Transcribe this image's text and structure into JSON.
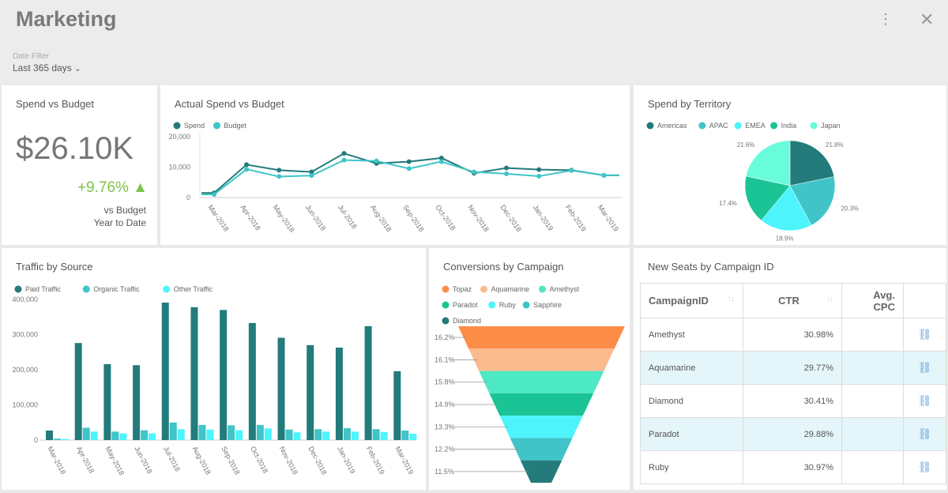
{
  "header": {
    "title": "Marketing",
    "filter_label": "Date Filter",
    "filter_value": "Last 365 days",
    "filter_chevron": "⌄",
    "more_icon": "⋮",
    "close_icon": "✕"
  },
  "kpi": {
    "title": "Spend vs Budget",
    "value": "$26.10K",
    "delta": "+9.76% ▲",
    "sub1": "vs Budget",
    "sub2": "Year to Date",
    "delta_color": "#7dc44b"
  },
  "chart_data": [
    {
      "id": "line",
      "type": "line",
      "title": "Actual Spend vs Budget",
      "categories": [
        "Mar-2018",
        "Apr-2018",
        "May-2018",
        "Jun-2018",
        "Jul-2018",
        "Aug-2018",
        "Sep-2018",
        "Oct-2018",
        "Nov-2018",
        "Dec-2018",
        "Jan-2019",
        "Feb-2019",
        "Mar-2019"
      ],
      "ylim": [
        0,
        20000
      ],
      "yticks": [
        "0",
        "10,000",
        "20,000"
      ],
      "legend": "top-left",
      "series": [
        {
          "name": "Spend",
          "color": "#237b7b",
          "values": [
            1500,
            10800,
            9000,
            8400,
            14500,
            11200,
            11800,
            13000,
            8000,
            9700,
            9200,
            9000,
            7300
          ]
        },
        {
          "name": "Budget",
          "color": "#40c4c8",
          "values": [
            1000,
            9300,
            6900,
            7200,
            12300,
            12000,
            9500,
            11800,
            8400,
            7800,
            7000,
            8900,
            7300
          ]
        }
      ]
    },
    {
      "id": "pie",
      "type": "pie",
      "title": "Spend by Territory",
      "legend": "top",
      "slices": [
        {
          "name": "Americas",
          "value": 21.8,
          "label": "21.8%",
          "color": "#237b7b"
        },
        {
          "name": "APAC",
          "value": 20.3,
          "label": "20.3%",
          "color": "#40c4c8"
        },
        {
          "name": "EMEA",
          "value": 18.9,
          "label": "18.9%",
          "color": "#4df4fc"
        },
        {
          "name": "India",
          "value": 17.4,
          "label": "17.4%",
          "color": "#1bc495"
        },
        {
          "name": "Japan",
          "value": 21.6,
          "label": "21.6%",
          "color": "#69fcda"
        }
      ]
    },
    {
      "id": "bar",
      "type": "bar",
      "title": "Traffic by Source",
      "categories": [
        "Mar-2018",
        "Apr-2018",
        "May-2018",
        "Jun-2018",
        "Jul-2018",
        "Aug-2018",
        "Sep-2018",
        "Oct-2018",
        "Nov-2018",
        "Dec-2018",
        "Jan-2019",
        "Feb-2019",
        "Mar-2019"
      ],
      "ylim": [
        0,
        400000
      ],
      "yticks": [
        "0",
        "100,000",
        "200,000",
        "300,000",
        "400,000"
      ],
      "legend": "top-left",
      "series": [
        {
          "name": "Paid Traffic",
          "color": "#237b7b",
          "values": [
            27000,
            276000,
            216000,
            213000,
            391000,
            378000,
            370000,
            333000,
            291000,
            270000,
            263000,
            324000,
            196000
          ]
        },
        {
          "name": "Organic Traffic",
          "color": "#40c4c8",
          "values": [
            4000,
            35000,
            24000,
            28000,
            50000,
            43000,
            42000,
            43000,
            30000,
            31000,
            34000,
            31000,
            27000
          ]
        },
        {
          "name": "Other Traffic",
          "color": "#4df4fc",
          "values": [
            3000,
            24000,
            19000,
            19000,
            31000,
            30000,
            28000,
            33000,
            22000,
            24000,
            24000,
            23000,
            18000
          ]
        }
      ]
    },
    {
      "id": "funnel",
      "type": "funnel",
      "title": "Conversions by Campaign",
      "legend": "top-left",
      "stages": [
        {
          "name": "Topaz",
          "label": "16.2%",
          "color": "#fd8c47"
        },
        {
          "name": "Aquamarine",
          "label": "16.1%",
          "color": "#fcba8f"
        },
        {
          "name": "Amethyst",
          "label": "15.8%",
          "color": "#4de8c4"
        },
        {
          "name": "Paradot",
          "label": "14.9%",
          "color": "#1bc495"
        },
        {
          "name": "Ruby",
          "label": "13.3%",
          "color": "#4df4fc"
        },
        {
          "name": "Sapphire",
          "label": "12.2%",
          "color": "#40c4c8"
        },
        {
          "name": "Diamond",
          "label": "11.5%",
          "color": "#237b7b"
        }
      ]
    }
  ],
  "table": {
    "title": "New Seats by Campaign ID",
    "columns": [
      "CampaignID",
      "CTR",
      "Avg. CPC",
      ""
    ],
    "sort_icon": "↑↓",
    "link_icon": "🔗",
    "rows": [
      {
        "id": "Amethyst",
        "ctr": "30.98%",
        "cpc": ""
      },
      {
        "id": "Aquamarine",
        "ctr": "29.77%",
        "cpc": ""
      },
      {
        "id": "Diamond",
        "ctr": "30.41%",
        "cpc": ""
      },
      {
        "id": "Paradot",
        "ctr": "29.88%",
        "cpc": ""
      },
      {
        "id": "Ruby",
        "ctr": "30.97%",
        "cpc": ""
      }
    ]
  }
}
